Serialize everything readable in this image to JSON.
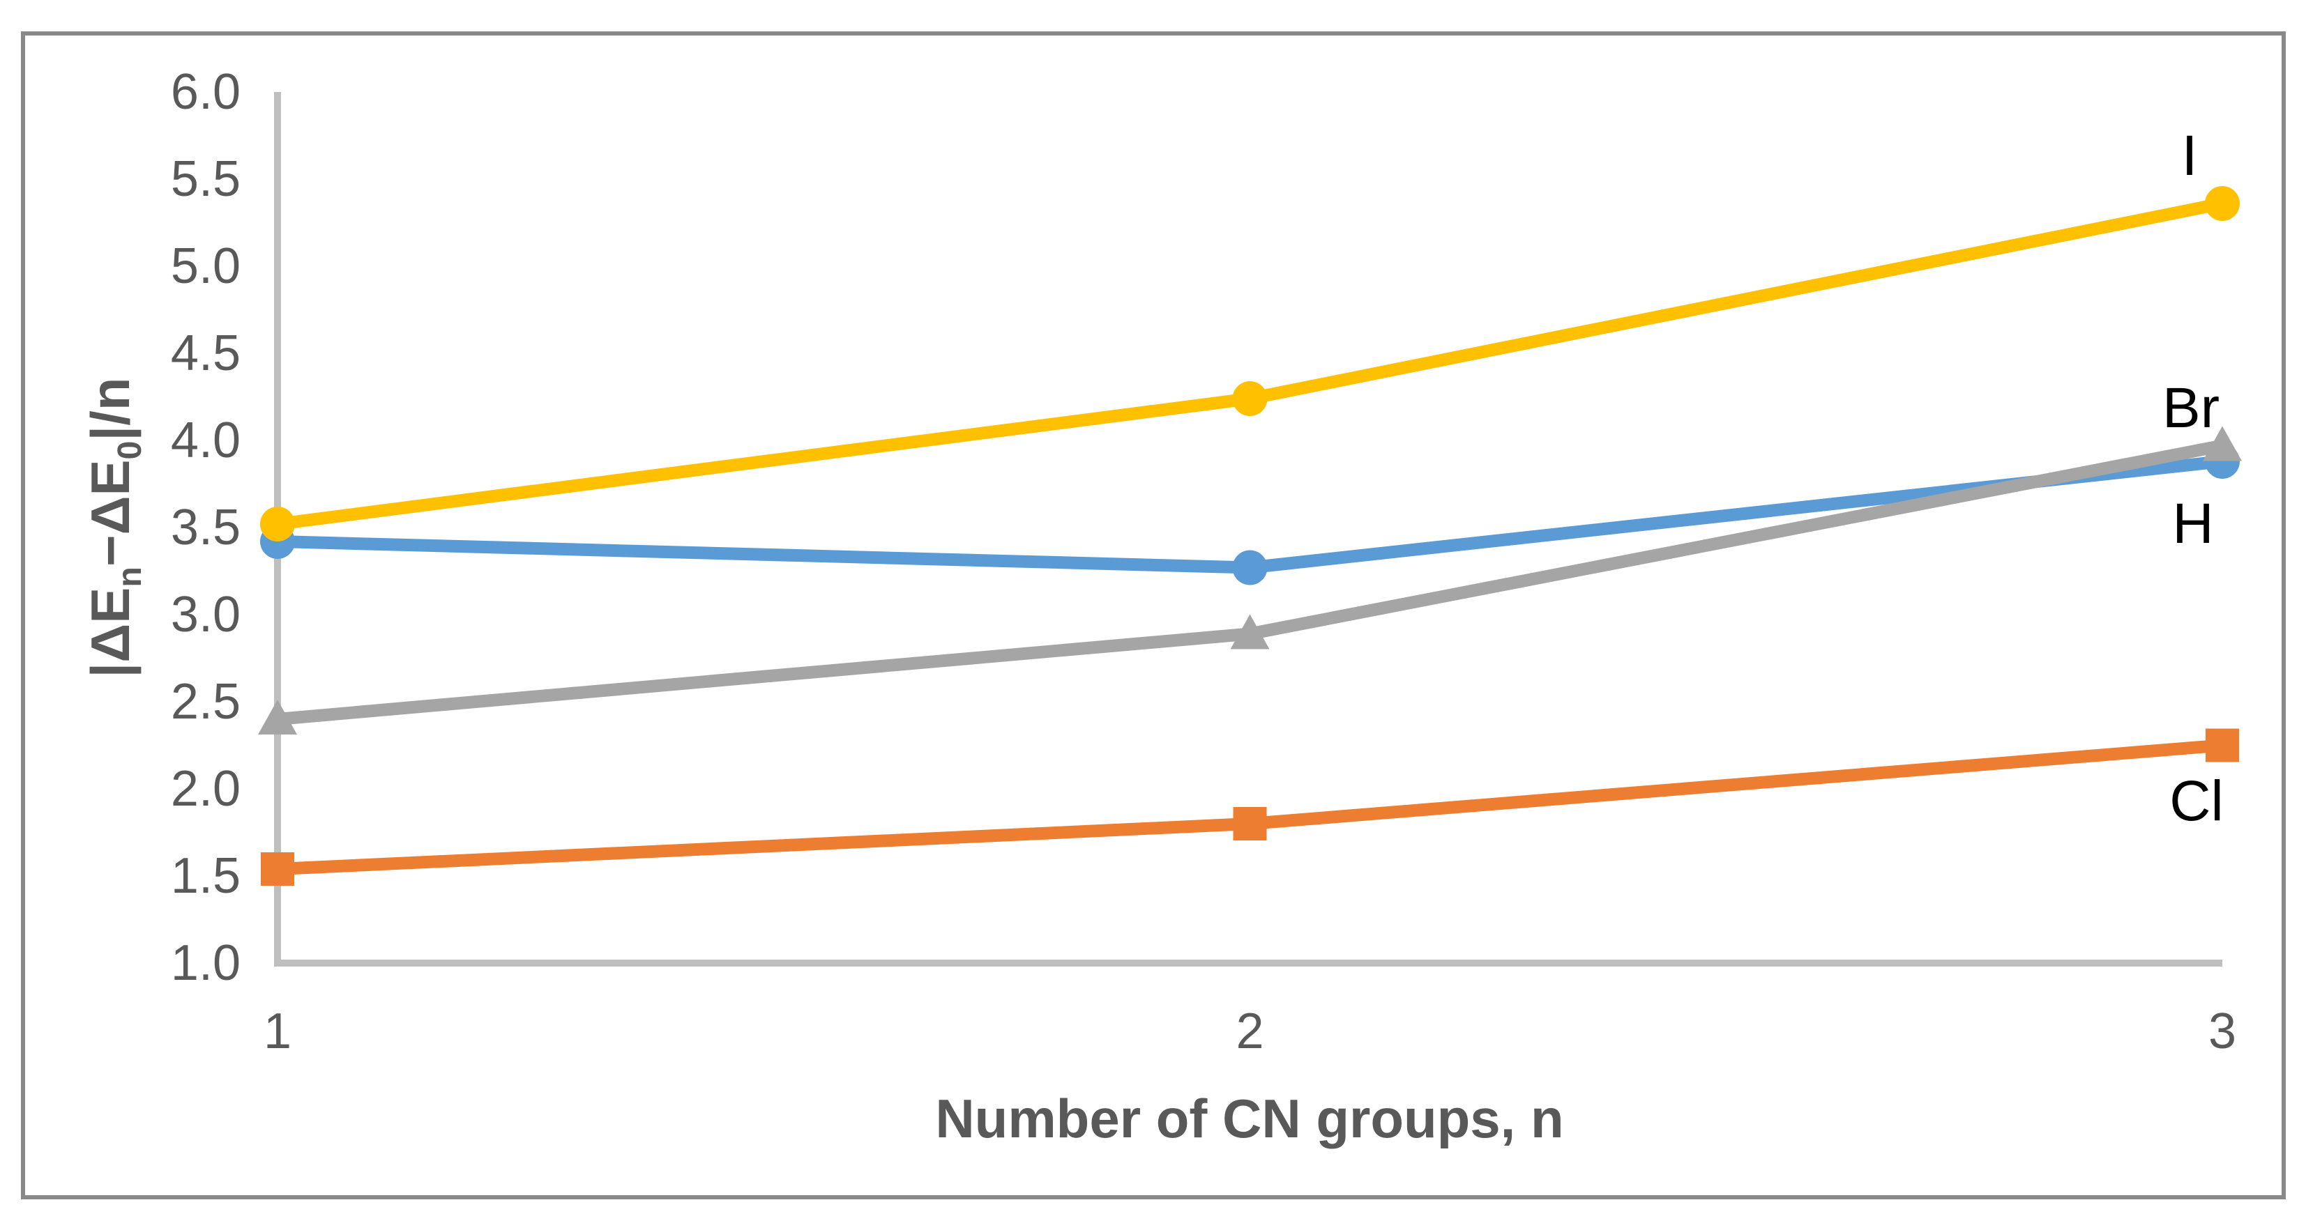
{
  "figure": {
    "background": "#FFFFFF",
    "border_color": "#898989"
  },
  "chart_data": {
    "type": "line",
    "title": "",
    "xlabel": "Number of CN groups, n",
    "ylabel": "|ΔEn−ΔE0|/n",
    "ylabel_parts": {
      "p1": "|ΔE",
      "sub1": "n",
      "p2": "−ΔE",
      "sub2": "0",
      "p3": "|/n"
    },
    "x": [
      1,
      2,
      3
    ],
    "xticks": [
      "1",
      "2",
      "3"
    ],
    "yticks": [
      "6.0",
      "5.5",
      "5.0",
      "4.5",
      "4.0",
      "3.5",
      "3.0",
      "2.5",
      "2.0",
      "1.5",
      "1.0"
    ],
    "ylim": [
      1.0,
      6.0
    ],
    "ytick_step": 0.5,
    "grid": false,
    "legend_position": "labels-at-line-ends",
    "axis_color": "#BFBFBF",
    "tick_label_color": "#595959",
    "series_label_color": "#000000",
    "series": [
      {
        "name": "H",
        "color": "#5B9BD5",
        "marker": "circle",
        "values": [
          3.42,
          3.27,
          3.88
        ]
      },
      {
        "name": "Cl",
        "color": "#ED7D31",
        "marker": "square",
        "values": [
          1.54,
          1.8,
          2.25
        ]
      },
      {
        "name": "Br",
        "color": "#A5A5A5",
        "marker": "triangle",
        "values": [
          2.4,
          2.89,
          3.97
        ]
      },
      {
        "name": "I",
        "color": "#FFC000",
        "marker": "circle",
        "values": [
          3.52,
          4.24,
          5.36
        ]
      }
    ]
  }
}
